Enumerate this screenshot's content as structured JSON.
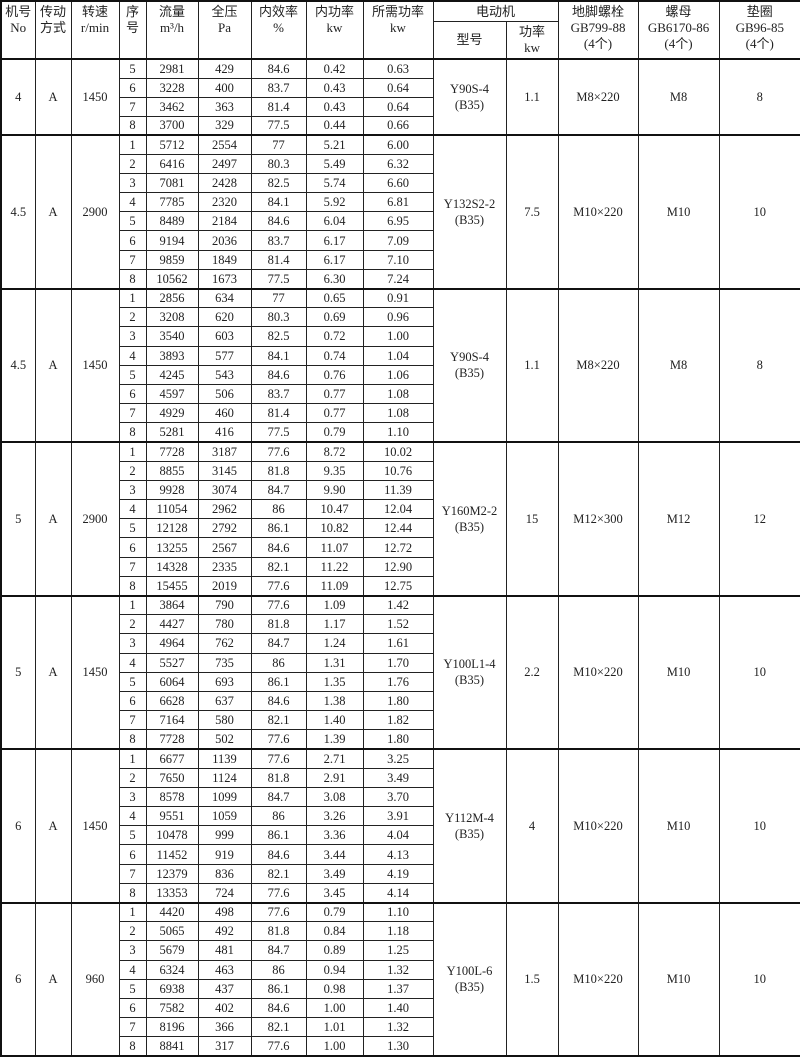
{
  "header": {
    "no": [
      "机号",
      "No"
    ],
    "drive": [
      "传动",
      "方式"
    ],
    "speed": [
      "转速",
      "r/min"
    ],
    "seq": [
      "序",
      "号"
    ],
    "flow": [
      "流量",
      "m³/h"
    ],
    "pressure": [
      "全压",
      "Pa"
    ],
    "efficiency": [
      "内效率",
      "%"
    ],
    "internal_power": [
      "内功率",
      "kw"
    ],
    "required_power": [
      "所需功率",
      "kw"
    ],
    "motor": "电动机",
    "motor_model": "型号",
    "motor_power": [
      "功率",
      "kw"
    ],
    "bolt": [
      "地脚螺栓",
      "GB799-88",
      "(4个)"
    ],
    "nut": [
      "螺母",
      "GB6170-86",
      "(4个)"
    ],
    "washer": [
      "垫圈",
      "GB96-85",
      "(4个)"
    ]
  },
  "groups": [
    {
      "no": "4",
      "drive": "A",
      "speed": "1450",
      "motor_model": [
        "Y90S-4",
        "(B35)"
      ],
      "motor_power": "1.1",
      "bolt": "M8×220",
      "nut": "M8",
      "washer": "8",
      "rows": [
        [
          "5",
          "2981",
          "429",
          "84.6",
          "0.42",
          "0.63"
        ],
        [
          "6",
          "3228",
          "400",
          "83.7",
          "0.43",
          "0.64"
        ],
        [
          "7",
          "3462",
          "363",
          "81.4",
          "0.43",
          "0.64"
        ],
        [
          "8",
          "3700",
          "329",
          "77.5",
          "0.44",
          "0.66"
        ]
      ]
    },
    {
      "no": "4.5",
      "drive": "A",
      "speed": "2900",
      "motor_model": [
        "Y132S2-2",
        "(B35)"
      ],
      "motor_power": "7.5",
      "bolt": "M10×220",
      "nut": "M10",
      "washer": "10",
      "rows": [
        [
          "1",
          "5712",
          "2554",
          "77",
          "5.21",
          "6.00"
        ],
        [
          "2",
          "6416",
          "2497",
          "80.3",
          "5.49",
          "6.32"
        ],
        [
          "3",
          "7081",
          "2428",
          "82.5",
          "5.74",
          "6.60"
        ],
        [
          "4",
          "7785",
          "2320",
          "84.1",
          "5.92",
          "6.81"
        ],
        [
          "5",
          "8489",
          "2184",
          "84.6",
          "6.04",
          "6.95"
        ],
        [
          "6",
          "9194",
          "2036",
          "83.7",
          "6.17",
          "7.09"
        ],
        [
          "7",
          "9859",
          "1849",
          "81.4",
          "6.17",
          "7.10"
        ],
        [
          "8",
          "10562",
          "1673",
          "77.5",
          "6.30",
          "7.24"
        ]
      ]
    },
    {
      "no": "4.5",
      "drive": "A",
      "speed": "1450",
      "motor_model": [
        "Y90S-4",
        "(B35)"
      ],
      "motor_power": "1.1",
      "bolt": "M8×220",
      "nut": "M8",
      "washer": "8",
      "rows": [
        [
          "1",
          "2856",
          "634",
          "77",
          "0.65",
          "0.91"
        ],
        [
          "2",
          "3208",
          "620",
          "80.3",
          "0.69",
          "0.96"
        ],
        [
          "3",
          "3540",
          "603",
          "82.5",
          "0.72",
          "1.00"
        ],
        [
          "4",
          "3893",
          "577",
          "84.1",
          "0.74",
          "1.04"
        ],
        [
          "5",
          "4245",
          "543",
          "84.6",
          "0.76",
          "1.06"
        ],
        [
          "6",
          "4597",
          "506",
          "83.7",
          "0.77",
          "1.08"
        ],
        [
          "7",
          "4929",
          "460",
          "81.4",
          "0.77",
          "1.08"
        ],
        [
          "8",
          "5281",
          "416",
          "77.5",
          "0.79",
          "1.10"
        ]
      ]
    },
    {
      "no": "5",
      "drive": "A",
      "speed": "2900",
      "motor_model": [
        "Y160M2-2",
        "(B35)"
      ],
      "motor_power": "15",
      "bolt": "M12×300",
      "nut": "M12",
      "washer": "12",
      "rows": [
        [
          "1",
          "7728",
          "3187",
          "77.6",
          "8.72",
          "10.02"
        ],
        [
          "2",
          "8855",
          "3145",
          "81.8",
          "9.35",
          "10.76"
        ],
        [
          "3",
          "9928",
          "3074",
          "84.7",
          "9.90",
          "11.39"
        ],
        [
          "4",
          "11054",
          "2962",
          "86",
          "10.47",
          "12.04"
        ],
        [
          "5",
          "12128",
          "2792",
          "86.1",
          "10.82",
          "12.44"
        ],
        [
          "6",
          "13255",
          "2567",
          "84.6",
          "11.07",
          "12.72"
        ],
        [
          "7",
          "14328",
          "2335",
          "82.1",
          "11.22",
          "12.90"
        ],
        [
          "8",
          "15455",
          "2019",
          "77.6",
          "11.09",
          "12.75"
        ]
      ]
    },
    {
      "no": "5",
      "drive": "A",
      "speed": "1450",
      "motor_model": [
        "Y100L1-4",
        "(B35)"
      ],
      "motor_power": "2.2",
      "bolt": "M10×220",
      "nut": "M10",
      "washer": "10",
      "rows": [
        [
          "1",
          "3864",
          "790",
          "77.6",
          "1.09",
          "1.42"
        ],
        [
          "2",
          "4427",
          "780",
          "81.8",
          "1.17",
          "1.52"
        ],
        [
          "3",
          "4964",
          "762",
          "84.7",
          "1.24",
          "1.61"
        ],
        [
          "4",
          "5527",
          "735",
          "86",
          "1.31",
          "1.70"
        ],
        [
          "5",
          "6064",
          "693",
          "86.1",
          "1.35",
          "1.76"
        ],
        [
          "6",
          "6628",
          "637",
          "84.6",
          "1.38",
          "1.80"
        ],
        [
          "7",
          "7164",
          "580",
          "82.1",
          "1.40",
          "1.82"
        ],
        [
          "8",
          "7728",
          "502",
          "77.6",
          "1.39",
          "1.80"
        ]
      ]
    },
    {
      "no": "6",
      "drive": "A",
      "speed": "1450",
      "motor_model": [
        "Y112M-4",
        "(B35)"
      ],
      "motor_power": "4",
      "bolt": "M10×220",
      "nut": "M10",
      "washer": "10",
      "rows": [
        [
          "1",
          "6677",
          "1139",
          "77.6",
          "2.71",
          "3.25"
        ],
        [
          "2",
          "7650",
          "1124",
          "81.8",
          "2.91",
          "3.49"
        ],
        [
          "3",
          "8578",
          "1099",
          "84.7",
          "3.08",
          "3.70"
        ],
        [
          "4",
          "9551",
          "1059",
          "86",
          "3.26",
          "3.91"
        ],
        [
          "5",
          "10478",
          "999",
          "86.1",
          "3.36",
          "4.04"
        ],
        [
          "6",
          "11452",
          "919",
          "84.6",
          "3.44",
          "4.13"
        ],
        [
          "7",
          "12379",
          "836",
          "82.1",
          "3.49",
          "4.19"
        ],
        [
          "8",
          "13353",
          "724",
          "77.6",
          "3.45",
          "4.14"
        ]
      ]
    },
    {
      "no": "6",
      "drive": "A",
      "speed": "960",
      "motor_model": [
        "Y100L-6",
        "(B35)"
      ],
      "motor_power": "1.5",
      "bolt": "M10×220",
      "nut": "M10",
      "washer": "10",
      "rows": [
        [
          "1",
          "4420",
          "498",
          "77.6",
          "0.79",
          "1.10"
        ],
        [
          "2",
          "5065",
          "492",
          "81.8",
          "0.84",
          "1.18"
        ],
        [
          "3",
          "5679",
          "481",
          "84.7",
          "0.89",
          "1.25"
        ],
        [
          "4",
          "6324",
          "463",
          "86",
          "0.94",
          "1.32"
        ],
        [
          "5",
          "6938",
          "437",
          "86.1",
          "0.98",
          "1.37"
        ],
        [
          "6",
          "7582",
          "402",
          "84.6",
          "1.00",
          "1.40"
        ],
        [
          "7",
          "8196",
          "366",
          "82.1",
          "1.01",
          "1.32"
        ],
        [
          "8",
          "8841",
          "317",
          "77.6",
          "1.00",
          "1.30"
        ]
      ]
    }
  ]
}
